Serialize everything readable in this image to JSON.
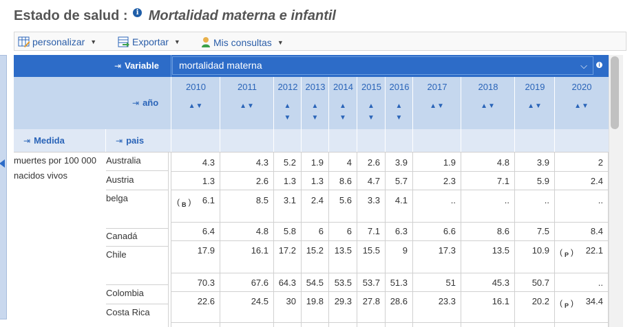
{
  "page": {
    "title": "Estado de salud :",
    "info_icon": "i",
    "subtitle": "Mortalidad materna e infantil"
  },
  "toolbar": {
    "personalize_label": "personalizar",
    "export_label": "Exportar",
    "queries_label": "Mis consultas"
  },
  "table": {
    "variable_label": "Variable",
    "variable_value": "mortalidad materna",
    "variable_info_icon": "i",
    "year_label": "año",
    "measure_label": "Medida",
    "country_label": "pais",
    "years": [
      "2010",
      "2011",
      "2012",
      "2013",
      "2014",
      "2015",
      "2016",
      "2017",
      "2018",
      "2019",
      "2020"
    ],
    "measure_value": "muertes por 100 000 nacidos vivos",
    "rows": [
      {
        "country": "Australia",
        "values": [
          "4.3",
          "4.3",
          "5.2",
          "1.9",
          "4",
          "2.6",
          "3.9",
          "1.9",
          "4.8",
          "3.9",
          "2"
        ]
      },
      {
        "country": "Austria",
        "values": [
          "1.3",
          "2.6",
          "1.3",
          "1.3",
          "8.6",
          "4.7",
          "5.7",
          "2.3",
          "7.1",
          "5.9",
          "2.4"
        ]
      },
      {
        "country": "belga",
        "values": [
          "6.1",
          "8.5",
          "3.1",
          "2.4",
          "5.6",
          "3.3",
          "4.1",
          "..",
          "..",
          "..",
          ".."
        ]
      },
      {
        "country": "Canadá",
        "values": [
          "6.4",
          "4.8",
          "5.8",
          "6",
          "6",
          "7.1",
          "6.3",
          "6.6",
          "8.6",
          "7.5",
          "8.4"
        ]
      },
      {
        "country": "Chile",
        "values": [
          "17.9",
          "16.1",
          "17.2",
          "15.2",
          "13.5",
          "15.5",
          "9",
          "17.3",
          "13.5",
          "10.9",
          "22.1"
        ]
      },
      {
        "country": "Colombia",
        "values": [
          "70.3",
          "67.6",
          "64.3",
          "54.5",
          "53.5",
          "53.7",
          "51.3",
          "51",
          "45.3",
          "50.7",
          ".."
        ]
      },
      {
        "country": "Costa Rica",
        "values": [
          "22.6",
          "24.5",
          "30",
          "19.8",
          "29.3",
          "27.8",
          "28.6",
          "23.3",
          "16.1",
          "20.2",
          "34.4"
        ]
      }
    ],
    "flags": {
      "belga_2010": {
        "open": "(",
        "letter": "B",
        "close": ")"
      },
      "chile_2020": {
        "open": "(",
        "letter": "P",
        "close": ")"
      },
      "costa_rica_2020": {
        "open": "(",
        "letter": "P",
        "close": ")"
      }
    }
  },
  "colors": {
    "header_dark": "#2d6cc8",
    "header_light": "#c5d7ee",
    "link": "#2a64b8"
  }
}
